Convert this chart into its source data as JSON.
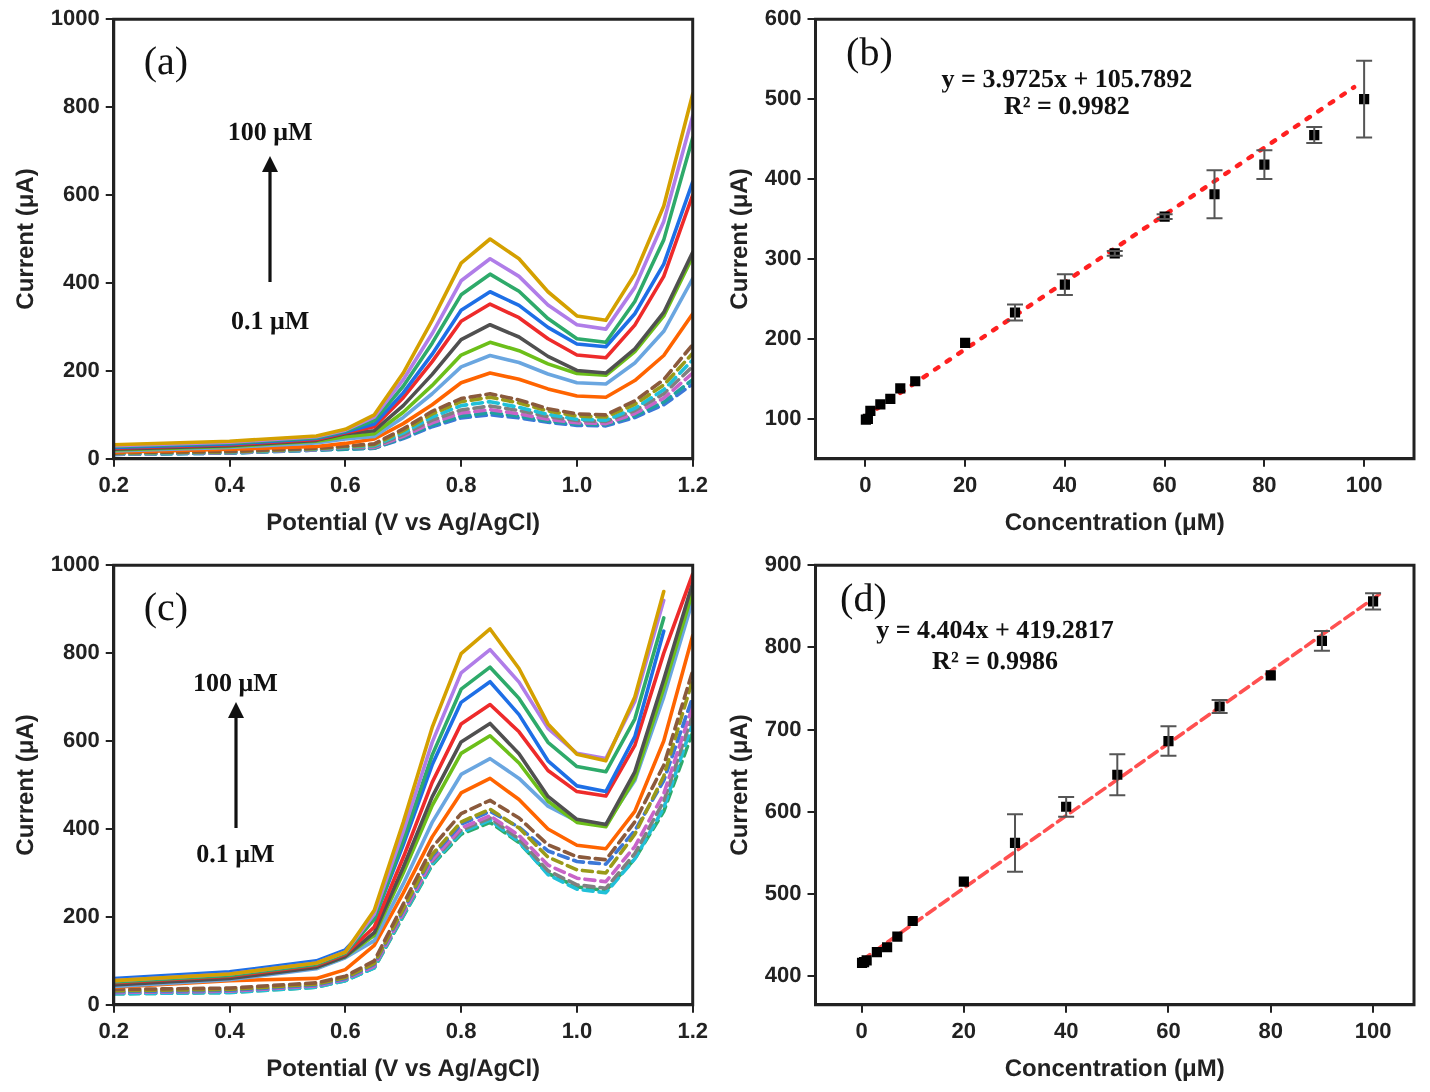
{
  "chart_data": [
    {
      "type": "line",
      "xlabel": "Potential (V vs Ag/AgCl)",
      "ylabel": "Current (μA)",
      "annotations": [
        "(a)",
        "100 μM",
        "0.1 μM"
      ],
      "x": [
        0.2,
        0.4,
        0.55,
        0.6,
        0.65,
        0.7,
        0.75,
        0.8,
        0.85,
        0.9,
        0.95,
        1.0,
        1.05,
        1.1,
        1.15,
        1.2
      ],
      "xlim": [
        0.2,
        1.2
      ],
      "xticks": [
        0.2,
        0.4,
        0.6,
        0.8,
        {
          "value": 1.0,
          "label": "1.0"
        },
        1.2
      ],
      "ylim": [
        0,
        1000
      ],
      "yticks": [
        0,
        200,
        400,
        600,
        800,
        1000
      ],
      "marker": "none",
      "series": [
        {
          "color": "#d4a000",
          "line_style": "solid",
          "values": [
            32,
            40,
            52,
            67,
            100,
            195,
            315,
            445,
            500,
            455,
            380,
            325,
            315,
            420,
            575,
            830
          ]
        },
        {
          "color": "#b07de8",
          "line_style": "solid",
          "values": [
            30,
            38,
            50,
            65,
            95,
            180,
            285,
            405,
            455,
            415,
            350,
            305,
            295,
            390,
            540,
            780
          ]
        },
        {
          "color": "#2eaa6a",
          "line_style": "solid",
          "values": [
            28,
            36,
            48,
            63,
            87,
            165,
            263,
            373,
            420,
            381,
            319,
            273,
            265,
            358,
            498,
            730
          ]
        },
        {
          "color": "#1e6fe6",
          "line_style": "solid",
          "values": [
            26,
            34,
            46,
            61,
            79,
            150,
            238,
            338,
            380,
            349,
            299,
            261,
            255,
            330,
            443,
            630
          ]
        },
        {
          "color": "#ee2b2b",
          "line_style": "solid",
          "values": [
            24,
            32,
            44,
            59,
            73,
            139,
            221,
            313,
            352,
            321,
            273,
            236,
            230,
            304,
            415,
            600
          ]
        },
        {
          "color": "#505050",
          "line_style": "solid",
          "values": [
            22,
            30,
            42,
            57,
            64,
            121,
            192,
            271,
            305,
            277,
            233,
            201,
            195,
            250,
            333,
            470
          ]
        },
        {
          "color": "#6cbf1a",
          "line_style": "solid",
          "values": [
            20,
            28,
            40,
            50,
            57,
            106,
            167,
            236,
            265,
            246,
            216,
            194,
            190,
            244,
            325,
            460
          ]
        },
        {
          "color": "#6aa6e0",
          "line_style": "solid",
          "values": [
            18,
            26,
            36,
            45,
            51,
            94,
            148,
            209,
            235,
            219,
            193,
            173,
            170,
            218,
            290,
            410
          ]
        },
        {
          "color": "#ff6400",
          "line_style": "solid",
          "values": [
            15,
            22,
            28,
            35,
            45,
            80,
            123,
            173,
            195,
            181,
            159,
            143,
            140,
            178,
            235,
            330
          ]
        },
        {
          "color": "#8b5a3c",
          "line_style": "dashed",
          "values": [
            14,
            17,
            24,
            29,
            34,
            68,
            108,
            137,
            148,
            134,
            114,
            102,
            100,
            132,
            180,
            260
          ]
        },
        {
          "color": "#9a9a1a",
          "line_style": "dashed",
          "values": [
            13,
            16,
            23,
            28,
            32,
            64,
            102,
            130,
            140,
            127,
            109,
            97,
            95,
            124,
            168,
            240
          ]
        },
        {
          "color": "#20c0d8",
          "line_style": "dashed",
          "values": [
            12,
            15,
            22,
            27,
            30,
            59,
            95,
            121,
            130,
            117,
            101,
            90,
            88,
            115,
            157,
            225
          ]
        },
        {
          "color": "#808080",
          "line_style": "dashed",
          "values": [
            12,
            15,
            22,
            27,
            28,
            55,
            88,
            111,
            120,
            110,
            96,
            87,
            85,
            110,
            148,
            210
          ]
        },
        {
          "color": "#c864c8",
          "line_style": "dashed",
          "values": [
            11,
            14,
            21,
            26,
            26,
            51,
            82,
            104,
            112,
            102,
            90,
            82,
            80,
            103,
            138,
            195
          ]
        },
        {
          "color": "#20a0a0",
          "line_style": "dashed",
          "values": [
            10,
            13,
            20,
            22,
            24,
            48,
            77,
            97,
            105,
            97,
            86,
            79,
            78,
            98,
            129,
            180
          ]
        },
        {
          "color": "#3c78d8",
          "line_style": "dashed",
          "values": [
            10,
            13,
            20,
            22,
            24,
            46,
            73,
            93,
            100,
            93,
            83,
            76,
            75,
            94,
            123,
            170
          ]
        }
      ]
    },
    {
      "type": "scatter",
      "xlabel": "Concentration (μM)",
      "ylabel": "Current (μA)",
      "annotations": [
        "(b)",
        "y = 3.9725x + 105.7892",
        "R² = 0.9982"
      ],
      "x": [
        0.1,
        0.5,
        1,
        3,
        5,
        7,
        10,
        20,
        30,
        40,
        50,
        60,
        70,
        80,
        90,
        100
      ],
      "xlim": [
        -10,
        110
      ],
      "xticks": [
        0,
        20,
        40,
        60,
        80,
        100
      ],
      "ylim": [
        50,
        600
      ],
      "yticks": [
        100,
        200,
        300,
        400,
        500,
        600
      ],
      "series": [
        {
          "type": "scatter",
          "marker": "square",
          "color": "#000000",
          "values": [
            99,
            100,
            110,
            118,
            125,
            138,
            147,
            195,
            233,
            268,
            307,
            353,
            381,
            418,
            455,
            500
          ],
          "errors": [
            null,
            null,
            null,
            null,
            null,
            null,
            null,
            null,
            10,
            13,
            3,
            3,
            30,
            18,
            10,
            48
          ]
        },
        {
          "type": "line",
          "marker": "none",
          "line_style": "dotted",
          "color": "#ff2020",
          "x": [
            0,
            98
          ],
          "values": [
            103,
            515
          ]
        }
      ]
    },
    {
      "type": "line",
      "xlabel": "Potential (V vs Ag/AgCl)",
      "ylabel": "Current (μA)",
      "annotations": [
        "(c)",
        "100 μM",
        "0.1 μM"
      ],
      "x": [
        0.2,
        0.4,
        0.55,
        0.6,
        0.65,
        0.7,
        0.75,
        0.8,
        0.85,
        0.9,
        0.95,
        1.0,
        1.05,
        1.1,
        1.15,
        1.2
      ],
      "xlim": [
        0.2,
        1.2
      ],
      "xticks": [
        0.2,
        0.4,
        0.6,
        0.8,
        {
          "value": 1.0,
          "label": "1.0"
        },
        1.2
      ],
      "ylim": [
        0,
        1000
      ],
      "yticks": [
        0,
        200,
        400,
        600,
        800,
        1000
      ],
      "marker": "none",
      "series": [
        {
          "color": "#d4a000",
          "line_style": "solid",
          "values": [
            55,
            70,
            95,
            120,
            215,
            415,
            631,
            799,
            855,
            765,
            639,
            570,
            555,
            700,
            940,
            null
          ]
        },
        {
          "color": "#b07de8",
          "line_style": "solid",
          "values": [
            55,
            70,
            95,
            120,
            206,
            394,
            597,
            755,
            808,
            734,
            629,
            572,
            560,
            690,
            920,
            null
          ]
        },
        {
          "color": "#2eaa6a",
          "line_style": "solid",
          "values": [
            52,
            67,
            92,
            117,
            195,
            374,
            568,
            718,
            768,
            697,
            597,
            542,
            530,
            650,
            880,
            null
          ]
        },
        {
          "color": "#1e6fe6",
          "line_style": "solid",
          "values": [
            60,
            75,
            100,
            125,
            195,
            364,
            546,
            688,
            735,
            660,
            555,
            498,
            485,
            610,
            850,
            null
          ]
        },
        {
          "color": "#ee2b2b",
          "line_style": "solid",
          "values": [
            50,
            65,
            90,
            115,
            177,
            335,
            506,
            639,
            683,
            621,
            533,
            485,
            475,
            590,
            800,
            980
          ]
        },
        {
          "color": "#505050",
          "line_style": "solid",
          "values": [
            45,
            60,
            85,
            110,
            164,
            313,
            473,
            598,
            640,
            571,
            474,
            422,
            410,
            530,
            740,
            960
          ]
        },
        {
          "color": "#6cbf1a",
          "line_style": "solid",
          "values": [
            null,
            null,
            85,
            110,
            158,
            300,
            453,
            572,
            612,
            550,
            463,
            415,
            405,
            515,
            720,
            940
          ]
        },
        {
          "color": "#6aa6e0",
          "line_style": "solid",
          "values": [
            42,
            57,
            82,
            107,
            146,
            275,
            415,
            524,
            560,
            515,
            452,
            418,
            410,
            510,
            700,
            920
          ]
        },
        {
          "color": "#ff6400",
          "line_style": "solid",
          "values": [
            40,
            55,
            60,
            80,
            135,
            254,
            382,
            482,
            515,
            467,
            400,
            363,
            355,
            440,
            600,
            840
          ]
        },
        {
          "color": "#8b5a3c",
          "line_style": "dashed",
          "values": [
            35,
            38,
            50,
            65,
            100,
            229,
            358,
            435,
            465,
            425,
            364,
            337,
            330,
            416,
            545,
            760
          ]
        },
        {
          "color": "#9a9a1a",
          "line_style": "dashed",
          "values": [
            32,
            35,
            47,
            62,
            94,
            218,
            342,
            416,
            445,
            402,
            336,
            307,
            300,
            388,
            520,
            740
          ]
        },
        {
          "color": "#3c78d8",
          "line_style": "dashed",
          "values": [
            30,
            33,
            45,
            60,
            92,
            215,
            338,
            411,
            440,
            404,
            350,
            326,
            320,
            396,
            510,
            700
          ]
        },
        {
          "color": "#c864c8",
          "line_style": "dashed",
          "values": [
            28,
            31,
            43,
            58,
            88,
            209,
            330,
            402,
            430,
            385,
            318,
            288,
            280,
            360,
            480,
            680
          ]
        },
        {
          "color": "#808080",
          "line_style": "dashed",
          "values": [
            28,
            31,
            43,
            58,
            88,
            207,
            326,
            397,
            425,
            377,
            305,
            273,
            265,
            344,
            463,
            660
          ]
        },
        {
          "color": "#20c0d8",
          "line_style": "dashed",
          "values": [
            25,
            28,
            40,
            55,
            84,
            203,
            321,
            392,
            420,
            371,
            296,
            263,
            255,
            332,
            448,
            640
          ]
        },
        {
          "color": "#2eaa6a",
          "line_style": "dashed",
          "values": [
            25,
            28,
            40,
            55,
            84,
            201,
            318,
            388,
            415,
            369,
            299,
            268,
            260,
            332,
            440,
            620
          ]
        }
      ]
    },
    {
      "type": "scatter",
      "xlabel": "Concentration (μM)",
      "ylabel": "Current (μA)",
      "annotations": [
        "(d)",
        "y = 4.404x + 419.2817",
        "R² = 0.9986"
      ],
      "x": [
        0.1,
        0.5,
        1,
        3,
        5,
        7,
        10,
        20,
        30,
        40,
        50,
        60,
        70,
        80,
        90,
        100
      ],
      "xlim": [
        -9,
        108
      ],
      "xticks": [
        0,
        20,
        40,
        60,
        80,
        100
      ],
      "ylim": [
        365,
        900
      ],
      "yticks": [
        400,
        500,
        600,
        700,
        800,
        900
      ],
      "series": [
        {
          "type": "scatter",
          "marker": "square",
          "color": "#000000",
          "values": [
            416,
            417,
            419,
            429,
            435,
            448,
            467,
            515,
            562,
            606,
            645,
            686,
            728,
            766,
            808,
            856
          ],
          "errors": [
            null,
            null,
            null,
            null,
            null,
            null,
            null,
            null,
            35,
            12,
            25,
            18,
            8,
            null,
            12,
            10
          ]
        },
        {
          "type": "line",
          "marker": "none",
          "line_style": "dashed",
          "color": "#ff5050",
          "x": [
            0,
            102
          ],
          "values": [
            419,
            868
          ]
        }
      ]
    }
  ]
}
